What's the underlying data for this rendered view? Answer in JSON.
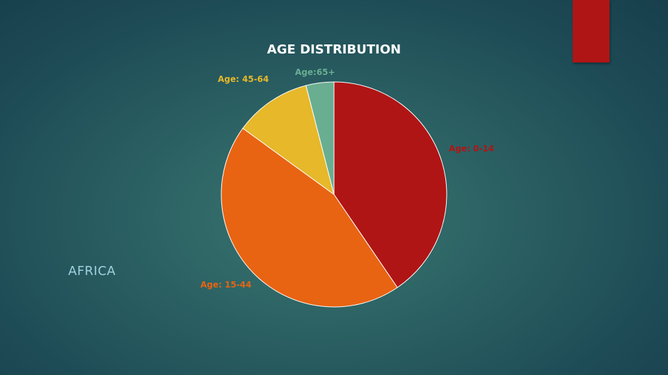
{
  "slide": {
    "side_label": "AFRICA",
    "accent_color": "#b01515"
  },
  "chart_data": {
    "type": "pie",
    "title": "AGE DISTRIBUTION",
    "start_angle_deg": 0,
    "direction": "clockwise",
    "slices": [
      {
        "label": "Age: 0-14",
        "value": 40.5,
        "color": "#b01515"
      },
      {
        "label": "Age: 15-44",
        "value": 44.5,
        "color": "#e86412"
      },
      {
        "label": "Age: 45-64",
        "value": 11.0,
        "color": "#e6b82a"
      },
      {
        "label": "Age:65+",
        "value": 4.0,
        "color": "#6aae92"
      }
    ]
  }
}
